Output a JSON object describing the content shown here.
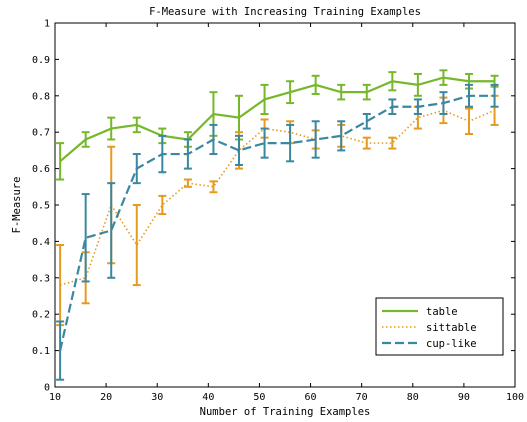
{
  "chart_data": {
    "type": "line",
    "title": "F-Measure with Increasing Training Examples",
    "xlabel": "Number of Training Examples",
    "ylabel": "F-Measure",
    "xlim": [
      10,
      100
    ],
    "ylim": [
      0,
      1
    ],
    "xticks": [
      10,
      20,
      30,
      40,
      50,
      60,
      70,
      80,
      90,
      100
    ],
    "yticks": [
      0,
      0.1,
      0.2,
      0.3,
      0.4,
      0.5,
      0.6,
      0.7,
      0.8,
      0.9,
      1
    ],
    "grid": false,
    "legend_position": "bottom-right",
    "x": [
      11,
      16,
      21,
      26,
      31,
      36,
      41,
      46,
      51,
      56,
      61,
      66,
      71,
      76,
      81,
      86,
      91,
      96
    ],
    "series": [
      {
        "name": "table",
        "color": "#76b82a",
        "style": "solid",
        "values": [
          0.62,
          0.68,
          0.71,
          0.72,
          0.69,
          0.68,
          0.75,
          0.74,
          0.79,
          0.81,
          0.83,
          0.81,
          0.81,
          0.84,
          0.83,
          0.85,
          0.84,
          0.84
        ],
        "errors": [
          0.05,
          0.02,
          0.03,
          0.02,
          0.02,
          0.02,
          0.06,
          0.06,
          0.04,
          0.03,
          0.025,
          0.02,
          0.02,
          0.025,
          0.03,
          0.02,
          0.02,
          0.015
        ]
      },
      {
        "name": "sittable",
        "color": "#e69a1e",
        "style": "dotted",
        "values": [
          0.28,
          0.3,
          0.5,
          0.39,
          0.5,
          0.56,
          0.55,
          0.65,
          0.71,
          0.7,
          0.68,
          0.69,
          0.67,
          0.67,
          0.74,
          0.76,
          0.73,
          0.76
        ],
        "errors": [
          0.11,
          0.07,
          0.16,
          0.11,
          0.025,
          0.01,
          0.015,
          0.05,
          0.025,
          0.03,
          0.025,
          0.03,
          0.015,
          0.015,
          0.03,
          0.035,
          0.035,
          0.04
        ]
      },
      {
        "name": "cup-like",
        "color": "#3a87a1",
        "style": "dashed",
        "values": [
          0.1,
          0.41,
          0.43,
          0.6,
          0.64,
          0.64,
          0.68,
          0.65,
          0.67,
          0.67,
          0.68,
          0.69,
          0.73,
          0.77,
          0.77,
          0.78,
          0.8,
          0.8
        ],
        "errors": [
          0.08,
          0.12,
          0.13,
          0.04,
          0.05,
          0.04,
          0.04,
          0.04,
          0.04,
          0.05,
          0.05,
          0.04,
          0.02,
          0.02,
          0.02,
          0.03,
          0.03,
          0.03
        ]
      }
    ]
  }
}
